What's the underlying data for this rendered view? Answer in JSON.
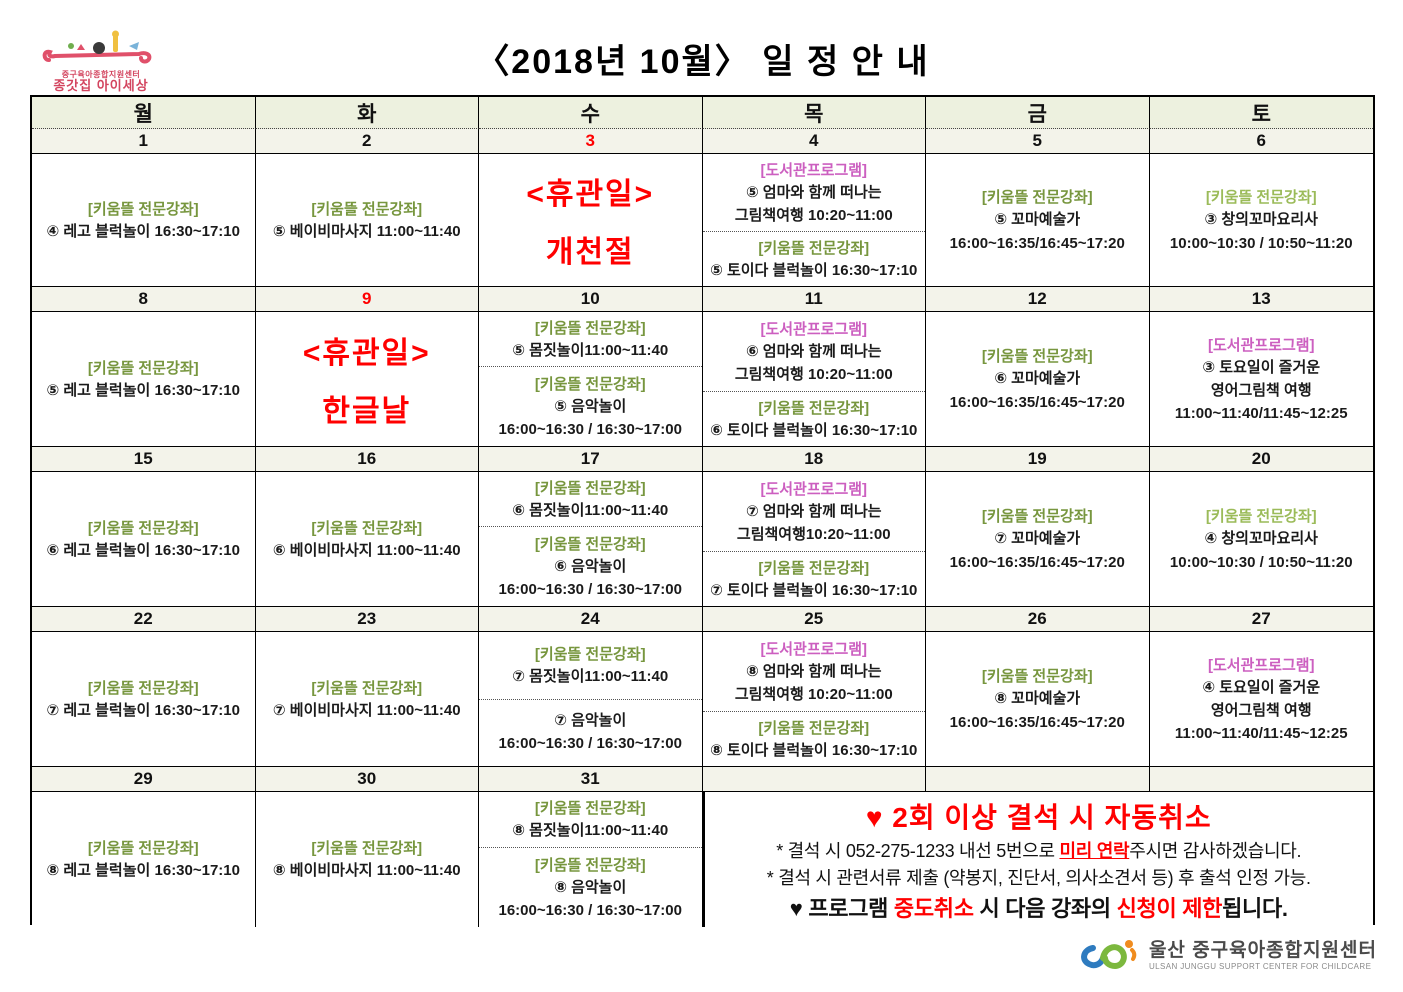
{
  "title": "〈2018년 10월〉 일 정 안 내",
  "header_logo": {
    "line1": "중구육아종합지원센터",
    "line2": "종갓집 아이세상"
  },
  "footer_logo": {
    "korean": "울산 중구육아종합지원센터",
    "english": "ULSAN JUNGGU SUPPORT CENTER FOR CHILDCARE"
  },
  "colors": {
    "green": "#77963e",
    "light_green": "#9bbb59",
    "pink": "#cc5fc0",
    "red": "#ff0000",
    "header_bg": "#edf1df",
    "date_bg": "#f3f3ea"
  },
  "calendar": {
    "day_headers": [
      "월",
      "화",
      "수",
      "목",
      "금",
      "토"
    ],
    "weeks": [
      {
        "dates": [
          {
            "d": "1"
          },
          {
            "d": "2"
          },
          {
            "d": "3",
            "red": true
          },
          {
            "d": "4"
          },
          {
            "d": "5"
          },
          {
            "d": "6"
          }
        ],
        "cells": [
          {
            "sections": [
              {
                "label": "[키움뜰 전문강좌]",
                "color": "green",
                "lines": [
                  "④ 레고 블럭놀이 16:30~17:10"
                ]
              }
            ]
          },
          {
            "sections": [
              {
                "label": "[키움뜰 전문강좌]",
                "color": "green",
                "lines": [
                  "⑤ 베이비마사지 11:00~11:40"
                ]
              }
            ]
          },
          {
            "holiday": [
              "<휴관일>",
              "개천절"
            ]
          },
          {
            "sections": [
              {
                "label": "[도서관프로그램]",
                "color": "pink",
                "lines": [
                  "⑤ 엄마와 함께 떠나는",
                  "그림책여행 10:20~11:00"
                ]
              },
              {
                "label": "[키움뜰 전문강좌]",
                "color": "green",
                "lines": [
                  "⑤ 토이다 블럭놀이 16:30~17:10"
                ]
              }
            ]
          },
          {
            "sections": [
              {
                "label": "[키움뜰 전문강좌]",
                "color": "green",
                "lines": [
                  "⑤ 꼬마예술가",
                  "16:00~16:35/16:45~17:20"
                ]
              }
            ]
          },
          {
            "sections": [
              {
                "label": "[키움뜰 전문강좌]",
                "color": "lightgreen",
                "lines": [
                  "③ 창의꼬마요리사",
                  "10:00~10:30 / 10:50~11:20"
                ]
              }
            ]
          }
        ]
      },
      {
        "dates": [
          {
            "d": "8"
          },
          {
            "d": "9",
            "red": true
          },
          {
            "d": "10"
          },
          {
            "d": "11"
          },
          {
            "d": "12"
          },
          {
            "d": "13"
          }
        ],
        "cells": [
          {
            "sections": [
              {
                "label": "[키움뜰 전문강좌]",
                "color": "green",
                "lines": [
                  "⑤ 레고 블럭놀이 16:30~17:10"
                ]
              }
            ]
          },
          {
            "holiday": [
              "<휴관일>",
              "한글날"
            ]
          },
          {
            "sections": [
              {
                "label": "[키움뜰 전문강좌]",
                "color": "green",
                "lines": [
                  "⑤ 몸짓놀이11:00~11:40"
                ]
              },
              {
                "label": "[키움뜰 전문강좌]",
                "color": "green",
                "lines": [
                  "⑤ 음악놀이",
                  "16:00~16:30 / 16:30~17:00"
                ]
              }
            ]
          },
          {
            "sections": [
              {
                "label": "[도서관프로그램]",
                "color": "pink",
                "lines": [
                  "⑥ 엄마와 함께 떠나는",
                  "그림책여행 10:20~11:00"
                ]
              },
              {
                "label": "[키움뜰 전문강좌]",
                "color": "green",
                "lines": [
                  "⑥ 토이다 블럭놀이 16:30~17:10"
                ]
              }
            ]
          },
          {
            "sections": [
              {
                "label": "[키움뜰 전문강좌]",
                "color": "green",
                "lines": [
                  "⑥ 꼬마예술가",
                  "16:00~16:35/16:45~17:20"
                ]
              }
            ]
          },
          {
            "sections": [
              {
                "label": "[도서관프로그램]",
                "color": "pink",
                "lines": [
                  "③ 토요일이 즐거운",
                  "영어그림책 여행",
                  "11:00~11:40/11:45~12:25"
                ]
              }
            ]
          }
        ]
      },
      {
        "dates": [
          {
            "d": "15"
          },
          {
            "d": "16"
          },
          {
            "d": "17"
          },
          {
            "d": "18"
          },
          {
            "d": "19"
          },
          {
            "d": "20"
          }
        ],
        "cells": [
          {
            "sections": [
              {
                "label": "[키움뜰 전문강좌]",
                "color": "green",
                "lines": [
                  "⑥ 레고 블럭놀이 16:30~17:10"
                ]
              }
            ]
          },
          {
            "sections": [
              {
                "label": "[키움뜰 전문강좌]",
                "color": "green",
                "lines": [
                  "⑥ 베이비마사지 11:00~11:40"
                ]
              }
            ]
          },
          {
            "sections": [
              {
                "label": "[키움뜰 전문강좌]",
                "color": "green",
                "lines": [
                  "⑥ 몸짓놀이11:00~11:40"
                ]
              },
              {
                "label": "[키움뜰 전문강좌]",
                "color": "green",
                "lines": [
                  "⑥ 음악놀이",
                  "16:00~16:30 / 16:30~17:00"
                ]
              }
            ]
          },
          {
            "sections": [
              {
                "label": "[도서관프로그램]",
                "color": "pink",
                "lines": [
                  "⑦ 엄마와 함께 떠나는",
                  "그림책여행10:20~11:00"
                ]
              },
              {
                "label": "[키움뜰 전문강좌]",
                "color": "green",
                "lines": [
                  "⑦ 토이다 블럭놀이 16:30~17:10"
                ]
              }
            ]
          },
          {
            "sections": [
              {
                "label": "[키움뜰 전문강좌]",
                "color": "green",
                "lines": [
                  "⑦ 꼬마예술가",
                  "16:00~16:35/16:45~17:20"
                ]
              }
            ]
          },
          {
            "sections": [
              {
                "label": "[키움뜰 전문강좌]",
                "color": "lightgreen",
                "lines": [
                  "④ 창의꼬마요리사",
                  "10:00~10:30 / 10:50~11:20"
                ]
              }
            ]
          }
        ]
      },
      {
        "dates": [
          {
            "d": "22"
          },
          {
            "d": "23"
          },
          {
            "d": "24"
          },
          {
            "d": "25"
          },
          {
            "d": "26"
          },
          {
            "d": "27"
          }
        ],
        "cells": [
          {
            "sections": [
              {
                "label": "[키움뜰 전문강좌]",
                "color": "green",
                "lines": [
                  "⑦ 레고 블럭놀이 16:30~17:10"
                ]
              }
            ]
          },
          {
            "sections": [
              {
                "label": "[키움뜰 전문강좌]",
                "color": "green",
                "lines": [
                  "⑦ 베이비마사지 11:00~11:40"
                ]
              }
            ]
          },
          {
            "sections": [
              {
                "label": "[키움뜰 전문강좌]",
                "color": "green",
                "lines": [
                  "⑦ 몸짓놀이11:00~11:40"
                ]
              },
              {
                "lines": [
                  "⑦ 음악놀이",
                  "16:00~16:30 / 16:30~17:00"
                ]
              }
            ]
          },
          {
            "sections": [
              {
                "label": "[도서관프로그램]",
                "color": "pink",
                "lines": [
                  "⑧ 엄마와 함께 떠나는",
                  "그림책여행 10:20~11:00"
                ]
              },
              {
                "label": "[키움뜰 전문강좌]",
                "color": "green",
                "lines": [
                  "⑧ 토이다 블럭놀이 16:30~17:10"
                ]
              }
            ]
          },
          {
            "sections": [
              {
                "label": "[키움뜰 전문강좌]",
                "color": "green",
                "lines": [
                  "⑧ 꼬마예술가",
                  "16:00~16:35/16:45~17:20"
                ]
              }
            ]
          },
          {
            "sections": [
              {
                "label": "[도서관프로그램]",
                "color": "pink",
                "lines": [
                  "④ 토요일이 즐거운",
                  "영어그림책 여행",
                  "11:00~11:40/11:45~12:25"
                ]
              }
            ]
          }
        ]
      },
      {
        "dates": [
          {
            "d": "29"
          },
          {
            "d": "30"
          },
          {
            "d": "31"
          },
          {
            "d": ""
          },
          {
            "d": ""
          },
          {
            "d": ""
          }
        ],
        "cells": [
          {
            "sections": [
              {
                "label": "[키움뜰 전문강좌]",
                "color": "green",
                "lines": [
                  "⑧ 레고 블럭놀이 16:30~17:10"
                ]
              }
            ]
          },
          {
            "sections": [
              {
                "label": "[키움뜰 전문강좌]",
                "color": "green",
                "lines": [
                  "⑧ 베이비마사지 11:00~11:40"
                ]
              }
            ]
          },
          {
            "sections": [
              {
                "label": "[키움뜰 전문강좌]",
                "color": "green",
                "lines": [
                  "⑧ 몸짓놀이11:00~11:40"
                ]
              },
              {
                "label": "[키움뜰 전문강좌]",
                "color": "green",
                "lines": [
                  "⑧ 음악놀이",
                  "16:00~16:30 / 16:30~17:00"
                ]
              }
            ]
          }
        ],
        "has_notice": true
      }
    ]
  },
  "notice": {
    "title": "♥ 2회 이상 결석 시 자동취소",
    "lines": [
      {
        "parts": [
          {
            "t": "* 결석 시 052-275-1233 내선 5번으로 "
          },
          {
            "t": "미리 연락",
            "red": true,
            "u": true
          },
          {
            "t": "주시면 감사하겠습니다."
          }
        ]
      },
      {
        "parts": [
          {
            "t": "* 결석 시 관련서류 제출 (약봉지, 진단서, 의사소견서 등) 후 출석 인정 가능."
          }
        ]
      },
      {
        "strong": true,
        "parts": [
          {
            "t": "♥ 프로그램 "
          },
          {
            "t": "중도취소",
            "red": true
          },
          {
            "t": " 시 다음 강좌의 "
          },
          {
            "t": "신청이 제한",
            "red": true
          },
          {
            "t": "됩니다."
          }
        ]
      }
    ]
  }
}
